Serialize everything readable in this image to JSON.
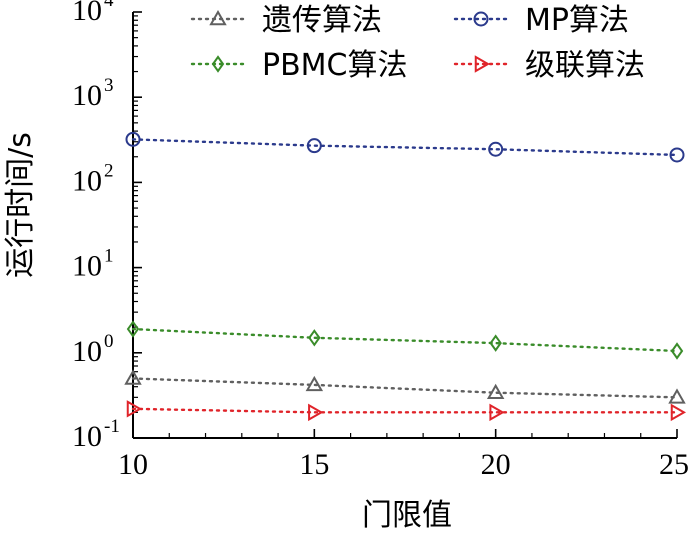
{
  "chart_data": {
    "type": "line",
    "xlabel": "门限值",
    "ylabel": "运行时间/s",
    "x": [
      10,
      15,
      20,
      25
    ],
    "xlim": [
      10,
      25
    ],
    "xticks": [
      "10",
      "15",
      "20",
      "25"
    ],
    "yscale": "log",
    "ylim": [
      0.1,
      10000
    ],
    "yticks": [
      {
        "base": "10",
        "exp": "-1"
      },
      {
        "base": "10",
        "exp": "0"
      },
      {
        "base": "10",
        "exp": "1"
      },
      {
        "base": "10",
        "exp": "2"
      },
      {
        "base": "10",
        "exp": "3"
      },
      {
        "base": "10",
        "exp": "4"
      }
    ],
    "grid": false,
    "legend_position": "top",
    "series": [
      {
        "name": "遗传算法",
        "values": [
          0.5,
          0.42,
          0.34,
          0.3
        ],
        "color": "#606060",
        "marker": "triangle-up"
      },
      {
        "name": "MP算法",
        "values": [
          320,
          270,
          245,
          210
        ],
        "color": "#2b3a8c",
        "marker": "circle"
      },
      {
        "name": "PBMC算法",
        "values": [
          1.9,
          1.5,
          1.3,
          1.05
        ],
        "color": "#3a8c2a",
        "marker": "diamond"
      },
      {
        "name": "级联算法",
        "values": [
          0.22,
          0.2,
          0.2,
          0.2
        ],
        "color": "#e0242a",
        "marker": "triangle-right"
      }
    ]
  }
}
